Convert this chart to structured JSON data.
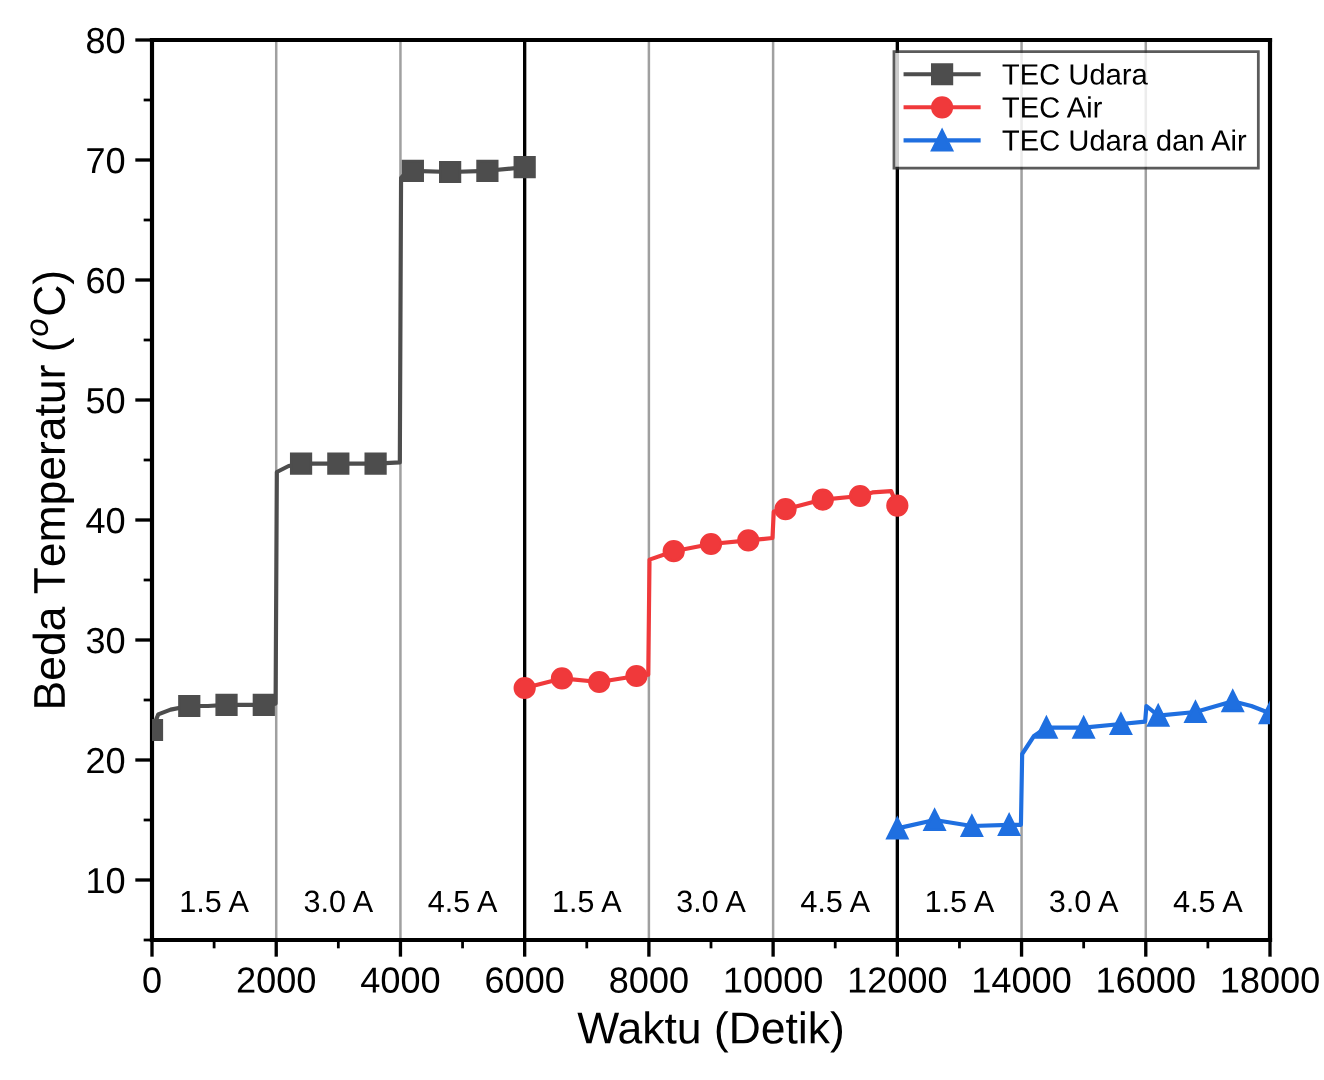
{
  "chart_data": {
    "type": "line",
    "xlabel": "Waktu (Detik)",
    "ylabel": "Beda Temperatur ($^{o}$C)",
    "xlim": [
      0,
      18000
    ],
    "xticks": [
      0,
      2000,
      4000,
      6000,
      8000,
      10000,
      12000,
      14000,
      16000,
      18000
    ],
    "ylim": [
      5,
      80
    ],
    "yticks": [
      10,
      20,
      30,
      40,
      50,
      60,
      70,
      80
    ],
    "grid": false,
    "legend": "top right",
    "line_style": "solid",
    "series": [
      {
        "name": "TEC Udara",
        "color": "#4d4d4d",
        "marker": "square",
        "x": [
          0,
          100,
          300,
          600,
          900,
          1200,
          1500,
          1800,
          1990,
          2010,
          2200,
          2400,
          3000,
          3600,
          3990,
          4010,
          4100,
          4200,
          4800,
          5400,
          6000
        ],
        "values": [
          22.5,
          23.8,
          24.2,
          24.5,
          24.5,
          24.6,
          24.6,
          24.6,
          24.7,
          44.0,
          44.5,
          44.7,
          44.7,
          44.7,
          44.8,
          68.5,
          69.0,
          69.1,
          69.0,
          69.1,
          69.4
        ]
      },
      {
        "name": "TEC Air",
        "color": "#f0393b",
        "marker": "circle",
        "x": [
          6000,
          6600,
          7200,
          7800,
          7990,
          8010,
          8400,
          9000,
          9600,
          9990,
          10010,
          10200,
          10800,
          11400,
          11600,
          11900,
          12000
        ],
        "values": [
          26.0,
          26.8,
          26.5,
          27.0,
          27.1,
          36.7,
          37.4,
          38.0,
          38.3,
          38.5,
          40.7,
          40.9,
          41.7,
          42.0,
          42.3,
          42.4,
          41.2
        ]
      },
      {
        "name": "TEC Udara dan Air",
        "color": "#1f6fe0",
        "marker": "triangle",
        "x": [
          12000,
          12600,
          13200,
          13800,
          13990,
          14010,
          14200,
          14400,
          15000,
          15600,
          15990,
          16010,
          16200,
          16800,
          17400,
          17700,
          18000
        ],
        "values": [
          14.3,
          15.0,
          14.5,
          14.6,
          14.6,
          20.5,
          22.0,
          22.7,
          22.7,
          23.0,
          23.2,
          24.5,
          23.7,
          24.0,
          24.9,
          24.5,
          23.9
        ]
      }
    ],
    "ref_lines": [
      {
        "axis": "x",
        "value": 2000,
        "color": "#a0a0a0"
      },
      {
        "axis": "x",
        "value": 4000,
        "color": "#a0a0a0"
      },
      {
        "axis": "x",
        "value": 6000,
        "color": "#000000"
      },
      {
        "axis": "x",
        "value": 8000,
        "color": "#a0a0a0"
      },
      {
        "axis": "x",
        "value": 10000,
        "color": "#a0a0a0"
      },
      {
        "axis": "x",
        "value": 12000,
        "color": "#000000"
      },
      {
        "axis": "x",
        "value": 14000,
        "color": "#a0a0a0"
      },
      {
        "axis": "x",
        "value": 16000,
        "color": "#a0a0a0"
      }
    ],
    "annotations": [
      "1.5 A",
      "3.0 A",
      "4.5 A",
      "1.5 A",
      "3.0 A",
      "4.5 A",
      "1.5 A",
      "3.0 A",
      "4.5 A"
    ]
  }
}
